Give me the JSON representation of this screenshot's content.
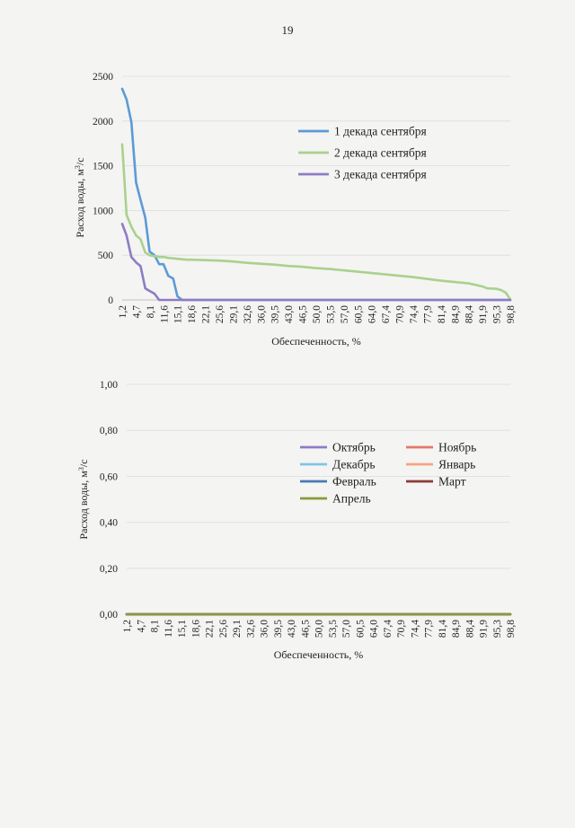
{
  "page_number": "19",
  "chart_data": [
    {
      "type": "line",
      "title": "",
      "xlabel": "Обеспеченность, %",
      "ylabel": "Расход воды, м",
      "ylabel_sup": "3",
      "ylabel_suffix": "/с",
      "ylim": [
        0,
        2500
      ],
      "yticks": [
        "0",
        "500",
        "1000",
        "1500",
        "2000",
        "2500"
      ],
      "x_tick_labels": [
        "1,2",
        "4,7",
        "8,1",
        "11,6",
        "15,1",
        "18,6",
        "22,1",
        "25,6",
        "29,1",
        "32,6",
        "36,0",
        "39,5",
        "43,0",
        "46,5",
        "50,0",
        "53,5",
        "57,0",
        "60,5",
        "64,0",
        "67,4",
        "70,9",
        "74,4",
        "77,9",
        "81,4",
        "84,9",
        "88,4",
        "91,9",
        "95,3",
        "98,8"
      ],
      "grid": true,
      "legend_position": "right",
      "series": [
        {
          "name": "1 декада сентября",
          "color": "#5b9bd5",
          "x": [
            1.2,
            2.3,
            3.5,
            4.7,
            5.8,
            7.0,
            8.1,
            9.3,
            10.5,
            11.6,
            12.8,
            14.0,
            15.1,
            16.3,
            17.4,
            18.6,
            100
          ],
          "y": [
            2360,
            2240,
            1990,
            1310,
            1120,
            920,
            540,
            500,
            400,
            400,
            270,
            240,
            40,
            0,
            0,
            0,
            0
          ]
        },
        {
          "name": "2 декада сентября",
          "color": "#a9d18e",
          "x": [
            1.2,
            2.3,
            3.5,
            4.7,
            5.8,
            7.0,
            8.1,
            9.3,
            10.5,
            11.6,
            12.8,
            14.0,
            15.1,
            16.3,
            17.4,
            18.6,
            22.1,
            25.6,
            29.1,
            32.6,
            36.0,
            39.5,
            43.0,
            46.5,
            50.0,
            53.5,
            57.0,
            60.5,
            64.0,
            67.4,
            70.9,
            74.4,
            77.9,
            81.4,
            84.9,
            88.4,
            90.0,
            91.9,
            93.0,
            95.3,
            96.5,
            97.7,
            98.8
          ],
          "y": [
            1740,
            950,
            820,
            720,
            680,
            530,
            500,
            490,
            480,
            480,
            470,
            465,
            460,
            455,
            450,
            450,
            445,
            440,
            430,
            415,
            405,
            395,
            380,
            370,
            355,
            345,
            330,
            315,
            300,
            285,
            270,
            255,
            235,
            215,
            200,
            185,
            170,
            150,
            130,
            125,
            110,
            80,
            5
          ]
        },
        {
          "name": "3 декада сентября",
          "color": "#8e7cc3",
          "x": [
            1.2,
            2.3,
            3.5,
            4.7,
            5.8,
            7.0,
            8.1,
            9.3,
            10.5,
            11.6,
            100
          ],
          "y": [
            850,
            720,
            480,
            420,
            380,
            130,
            100,
            70,
            0,
            0,
            0
          ]
        }
      ]
    },
    {
      "type": "line",
      "title": "",
      "xlabel": "Обеспеченность, %",
      "ylabel": "Расход воды, м",
      "ylabel_sup": "3",
      "ylabel_suffix": "/с",
      "ylim": [
        0,
        1
      ],
      "yticks": [
        "0,00",
        "0,20",
        "0,40",
        "0,60",
        "0,80",
        "1,00"
      ],
      "x_tick_labels": [
        "1,2",
        "4,7",
        "8,1",
        "11,6",
        "15,1",
        "18,6",
        "22,1",
        "25,6",
        "29,1",
        "32,6",
        "36,0",
        "39,5",
        "43,0",
        "46,5",
        "50,0",
        "53,5",
        "57,0",
        "60,5",
        "64,0",
        "67,4",
        "70,9",
        "74,4",
        "77,9",
        "81,4",
        "84,9",
        "88,4",
        "91,9",
        "95,3",
        "98,8"
      ],
      "grid": true,
      "legend_position": "center",
      "series": [
        {
          "name": "Октябрь",
          "color": "#8e7cc3",
          "x": [
            1.2,
            98.8
          ],
          "y": [
            0,
            0
          ]
        },
        {
          "name": "Ноябрь",
          "color": "#e07b6b",
          "x": [
            1.2,
            98.8
          ],
          "y": [
            0,
            0
          ]
        },
        {
          "name": "Декабрь",
          "color": "#7fc4e8",
          "x": [
            1.2,
            98.8
          ],
          "y": [
            0,
            0
          ]
        },
        {
          "name": "Январь",
          "color": "#f4a582",
          "x": [
            1.2,
            98.8
          ],
          "y": [
            0,
            0
          ]
        },
        {
          "name": "Февраль",
          "color": "#4a7ab5",
          "x": [
            1.2,
            98.8
          ],
          "y": [
            0,
            0
          ]
        },
        {
          "name": "Март",
          "color": "#8b3a3a",
          "x": [
            1.2,
            98.8
          ],
          "y": [
            0,
            0
          ]
        },
        {
          "name": "Апрель",
          "color": "#8a9a3a",
          "x": [
            1.2,
            98.8
          ],
          "y": [
            0,
            0
          ]
        }
      ]
    }
  ]
}
